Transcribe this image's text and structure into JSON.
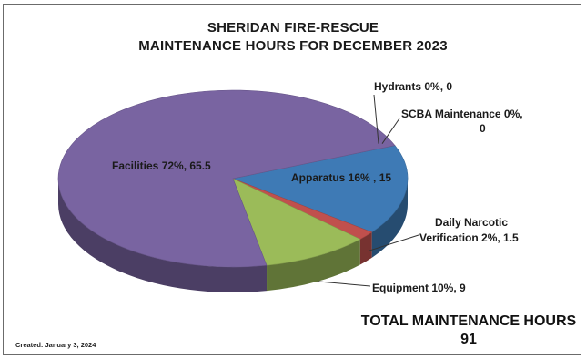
{
  "chart_data": {
    "type": "pie",
    "title_line1": "SHERIDAN FIRE-RESCUE",
    "title_line2": "MAINTENANCE HOURS FOR DECEMBER 2023",
    "slices": [
      {
        "name": "Apparatus",
        "value": 15,
        "percent": "16%",
        "label": "Apparatus  16% , 15",
        "color": "#3e7ab5"
      },
      {
        "name": "Daily Narcotic Verification",
        "value": 1.5,
        "percent": "2%",
        "label_line1": "Daily Narcotic",
        "label_line2": "Verification  2%, 1.5",
        "color": "#c0504d"
      },
      {
        "name": "Equipment",
        "value": 9,
        "percent": "10%",
        "label": "Equipment  10%, 9",
        "color": "#9bbb59"
      },
      {
        "name": "Facilities",
        "value": 65.5,
        "percent": "72%",
        "label": "Facilities  72%, 65.5",
        "color": "#7964a1"
      },
      {
        "name": "Hydrants",
        "value": 0,
        "percent": "0%",
        "label": "Hydrants  0%, 0",
        "color": "#4bacc6"
      },
      {
        "name": "SCBA Maintenance",
        "value": 0,
        "percent": "0%",
        "label_line1": "SCBA Maintenance  0%,",
        "label_line2": "0",
        "color": "#f79646"
      }
    ],
    "total_label": "TOTAL MAINTENANCE HOURS",
    "total_value": "91",
    "created": "Created:  January 3, 2024"
  }
}
